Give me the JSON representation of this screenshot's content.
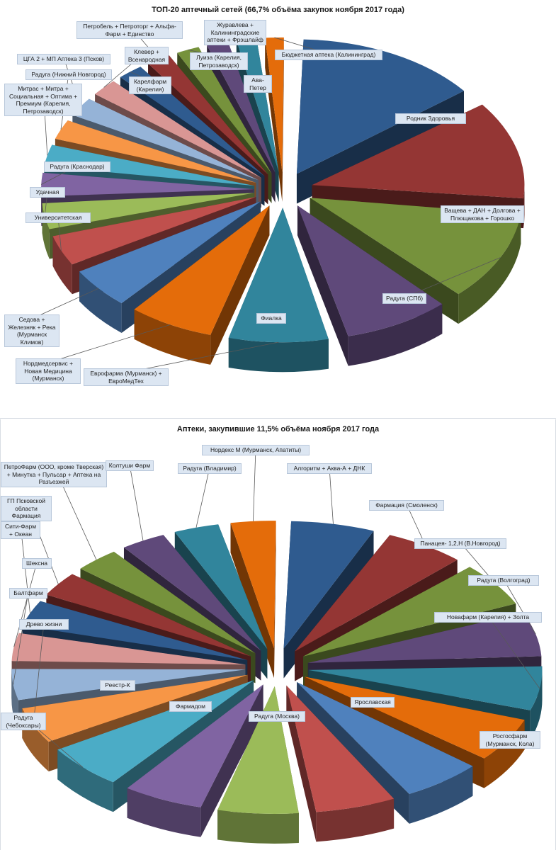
{
  "colors": [
    "#2f5b8f",
    "#943634",
    "#76923c",
    "#5f497a",
    "#31859c",
    "#e46c0a",
    "#4f81bd",
    "#c0504d",
    "#9bbb59",
    "#8064a2",
    "#4bacc6",
    "#f79646",
    "#95b3d7",
    "#d99694"
  ],
  "chart_data": [
    {
      "type": "pie",
      "title": "ТОП-20 аптечный сетей (66,7% объёма закупок ноября 2017 года)",
      "slices": [
        {
          "label": "Родник Здоровья",
          "value": 13.5
        },
        {
          "label": "Ващева + ДАН + Долгова + Плющакова + Горошко",
          "value": 11.5
        },
        {
          "label": "Радуга (СПб)",
          "value": 10.5
        },
        {
          "label": "Фиалка",
          "value": 8.0
        },
        {
          "label": "Еврофарма (Мурманск) + ЕвроМедТех",
          "value": 7.5
        },
        {
          "label": "Нордмедсервис + Новая Медицина (Мурманск)",
          "value": 6.5
        },
        {
          "label": "Седова + Железняк + Река (Мурманск Климов)",
          "value": 5.0
        },
        {
          "label": "Университетская",
          "value": 3.8
        },
        {
          "label": "Удачная",
          "value": 3.3
        },
        {
          "label": "Радуга (Краснодар)",
          "value": 3.0
        },
        {
          "label": "Митрас + Митра + Социальная + Оптима + Премиум (Карелия, Петрозаводск)",
          "value": 2.8
        },
        {
          "label": "Радуга (Нижний Новгород)",
          "value": 2.6
        },
        {
          "label": "ЦГА 2 + МП Аптека 3 (Псков)",
          "value": 2.5
        },
        {
          "label": "Клевер + Всенародная",
          "value": 2.3
        },
        {
          "label": "Карелфарм (Карелия)",
          "value": 2.2
        },
        {
          "label": "Петробель + Петроторг + Альфа-Фарм + Единство",
          "value": 2.1
        },
        {
          "label": "Луиза (Карелия, Петрозаводск)",
          "value": 2.0
        },
        {
          "label": "Журавлева + Калининградские аптеки + Фрэшлайф",
          "value": 1.9
        },
        {
          "label": "Ава-Петер",
          "value": 1.8
        },
        {
          "label": "Бюджетная аптека (Калининград)",
          "value": 1.7
        }
      ]
    },
    {
      "type": "pie",
      "title": "Аптеки, закупившие 11,5% объёма ноября 2017 года",
      "slices": [
        {
          "label": "Алгоритм + Аква-А + ДНК",
          "value": 6.0
        },
        {
          "label": "Фармация (Смоленск)",
          "value": 5.8
        },
        {
          "label": "Панацея- 1,2,Н (В.Новгород)",
          "value": 5.8
        },
        {
          "label": "Радуга (Волгоград)",
          "value": 5.8
        },
        {
          "label": "Новафарм (Карелия) + Золта",
          "value": 5.8
        },
        {
          "label": "Росгосфарм (Мурманск, Кола)",
          "value": 5.8
        },
        {
          "label": "Ярославская",
          "value": 5.8
        },
        {
          "label": "Радуга (Москва)",
          "value": 5.8
        },
        {
          "label": "Фармадом",
          "value": 5.8
        },
        {
          "label": "Реестр-К",
          "value": 5.8
        },
        {
          "label": "Радуга (Чебоксары)",
          "value": 5.8
        },
        {
          "label": "Древо жизни",
          "value": 4.8
        },
        {
          "label": "Балтфарм",
          "value": 4.2
        },
        {
          "label": "Шексна",
          "value": 3.8
        },
        {
          "label": "Сити-Фарм + Океан",
          "value": 3.6
        },
        {
          "label": "ГП Псковской области Фармация",
          "value": 3.4
        },
        {
          "label": "ПетроФарм (ООО, кроме Тверская) + Минутка + Пульсар + Аптека на Разъезжей",
          "value": 3.4
        },
        {
          "label": "Колтуши Фарм",
          "value": 3.4
        },
        {
          "label": "Радуга (Владимир)",
          "value": 3.4
        },
        {
          "label": "Нордекс М (Мурманск, Апатиты)",
          "value": 3.4
        }
      ]
    }
  ]
}
